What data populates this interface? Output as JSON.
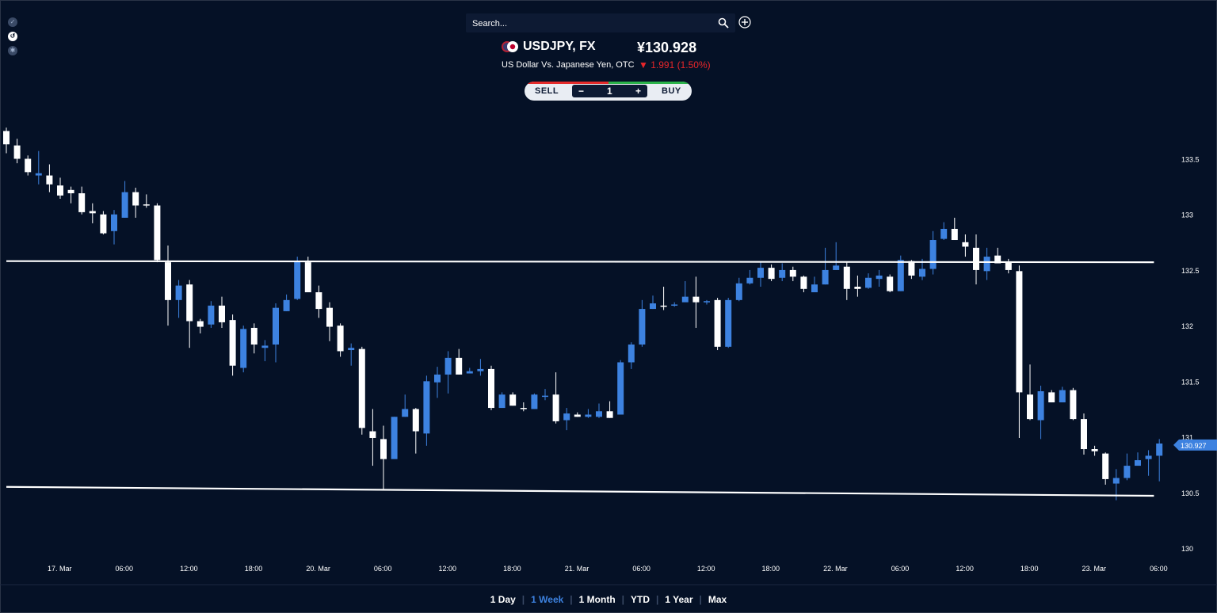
{
  "header": {
    "search_placeholder": "Search...",
    "symbol": "USDJPY, FX",
    "price": "¥130.928",
    "description": "US Dollar Vs. Japanese Yen, OTC",
    "change_arrow": "▼",
    "change": "1.991 (1.50%)"
  },
  "trade": {
    "sell_label": "SELL",
    "buy_label": "BUY",
    "minus": "−",
    "plus": "+",
    "quantity": "1"
  },
  "periods": [
    {
      "label": "1 Day"
    },
    {
      "label": "1 Week",
      "active": true
    },
    {
      "label": "1 Month"
    },
    {
      "label": "YTD"
    },
    {
      "label": "1 Year"
    },
    {
      "label": "Max"
    }
  ],
  "colors": {
    "background": "#051126",
    "up": "#3d82e0",
    "down": "#ffffff",
    "change_down": "#e8262a"
  },
  "chart_data": {
    "type": "candlestick",
    "ylim": [
      130,
      133.7
    ],
    "y_ticks": [
      "133.5",
      "133",
      "132.5",
      "132",
      "131.5",
      "131",
      "130.5",
      "130"
    ],
    "x_ticks": [
      {
        "label": "17. Mar",
        "i": 2
      },
      {
        "label": "06:00",
        "i": 8
      },
      {
        "label": "12:00",
        "i": 14
      },
      {
        "label": "18:00",
        "i": 20
      },
      {
        "label": "20. Mar",
        "i": 26
      },
      {
        "label": "06:00",
        "i": 32
      },
      {
        "label": "12:00",
        "i": 38
      },
      {
        "label": "18:00",
        "i": 44
      },
      {
        "label": "21. Mar",
        "i": 50
      },
      {
        "label": "06:00",
        "i": 56
      },
      {
        "label": "12:00",
        "i": 62
      },
      {
        "label": "18:00",
        "i": 68
      },
      {
        "label": "22. Mar",
        "i": 74
      },
      {
        "label": "06:00",
        "i": 80
      },
      {
        "label": "12:00",
        "i": 86
      },
      {
        "label": "18:00",
        "i": 92
      },
      {
        "label": "23. Mar",
        "i": 98
      },
      {
        "label": "06:00",
        "i": 104
      }
    ],
    "last_price_label": "130.927",
    "last_price": 130.927,
    "trendlines": [
      {
        "from": [
          0,
          132.58
        ],
        "to": [
          106.5,
          132.57
        ]
      },
      {
        "from": [
          0,
          130.55
        ],
        "to": [
          106.5,
          130.47
        ]
      }
    ],
    "candles": [
      [
        133.75,
        133.63,
        133.78,
        133.55
      ],
      [
        133.62,
        133.5,
        133.68,
        133.46
      ],
      [
        133.5,
        133.38,
        133.53,
        133.35
      ],
      [
        133.35,
        133.37,
        133.57,
        133.27
      ],
      [
        133.35,
        133.27,
        133.45,
        133.2
      ],
      [
        133.26,
        133.17,
        133.33,
        133.14
      ],
      [
        133.22,
        133.19,
        133.25,
        133.1
      ],
      [
        133.19,
        133.02,
        133.25,
        133.0
      ],
      [
        133.03,
        133.01,
        133.1,
        132.92
      ],
      [
        133.0,
        132.83,
        133.03,
        132.82
      ],
      [
        132.85,
        133.0,
        133.04,
        132.73
      ],
      [
        132.97,
        133.2,
        133.3,
        132.97
      ],
      [
        133.2,
        133.08,
        133.24,
        132.97
      ],
      [
        133.09,
        133.08,
        133.18,
        133.06
      ],
      [
        133.08,
        132.59,
        133.1,
        132.57
      ],
      [
        132.57,
        132.23,
        132.72,
        132.0
      ],
      [
        132.23,
        132.36,
        132.41,
        132.07
      ],
      [
        132.37,
        132.04,
        132.41,
        131.8
      ],
      [
        132.04,
        131.99,
        132.06,
        131.93
      ],
      [
        132.01,
        132.18,
        132.22,
        131.98
      ],
      [
        132.18,
        132.03,
        132.26,
        131.98
      ],
      [
        132.05,
        131.64,
        132.1,
        131.55
      ],
      [
        131.62,
        131.97,
        132.0,
        131.58
      ],
      [
        131.98,
        131.83,
        132.02,
        131.75
      ],
      [
        131.8,
        131.82,
        131.87,
        131.68
      ],
      [
        131.83,
        132.16,
        132.2,
        131.67
      ],
      [
        132.13,
        132.23,
        132.28,
        132.13
      ],
      [
        132.24,
        132.58,
        132.62,
        132.23
      ],
      [
        132.57,
        132.3,
        132.62,
        132.3
      ],
      [
        132.3,
        132.15,
        132.36,
        132.07
      ],
      [
        132.16,
        131.99,
        132.21,
        131.86
      ],
      [
        132.0,
        131.77,
        132.02,
        131.72
      ],
      [
        131.78,
        131.8,
        131.84,
        131.64
      ],
      [
        131.79,
        131.08,
        131.81,
        131.02
      ],
      [
        131.05,
        130.99,
        131.25,
        130.74
      ],
      [
        130.98,
        130.8,
        131.1,
        130.52
      ],
      [
        130.8,
        131.18,
        131.18,
        130.83
      ],
      [
        131.18,
        131.25,
        131.38,
        131.18
      ],
      [
        131.25,
        131.05,
        131.26,
        130.85
      ],
      [
        131.03,
        131.5,
        131.55,
        130.92
      ],
      [
        131.49,
        131.56,
        131.63,
        131.35
      ],
      [
        131.56,
        131.71,
        131.77,
        131.39
      ],
      [
        131.71,
        131.56,
        131.79,
        131.56
      ],
      [
        131.57,
        131.59,
        131.62,
        131.57
      ],
      [
        131.59,
        131.61,
        131.7,
        131.55
      ],
      [
        131.61,
        131.26,
        131.64,
        131.24
      ],
      [
        131.26,
        131.38,
        131.4,
        131.26
      ],
      [
        131.38,
        131.28,
        131.4,
        131.28
      ],
      [
        131.26,
        131.25,
        131.31,
        131.23
      ],
      [
        131.25,
        131.38,
        131.39,
        131.25
      ],
      [
        131.37,
        131.37,
        131.43,
        131.33
      ],
      [
        131.38,
        131.14,
        131.58,
        131.12
      ],
      [
        131.15,
        131.21,
        131.26,
        131.06
      ],
      [
        131.2,
        131.18,
        131.22,
        131.18
      ],
      [
        131.18,
        131.2,
        131.25,
        131.17
      ],
      [
        131.18,
        131.23,
        131.3,
        131.17
      ],
      [
        131.23,
        131.17,
        131.32,
        131.17
      ],
      [
        131.2,
        131.67,
        131.69,
        131.2
      ],
      [
        131.67,
        131.83,
        131.85,
        131.61
      ],
      [
        131.83,
        132.15,
        132.23,
        131.81
      ],
      [
        132.15,
        132.2,
        132.27,
        132.15
      ],
      [
        132.18,
        132.17,
        132.35,
        132.14
      ],
      [
        132.18,
        132.19,
        132.21,
        132.17
      ],
      [
        132.21,
        132.26,
        132.4,
        132.24
      ],
      [
        132.26,
        132.21,
        132.44,
        131.98
      ],
      [
        132.21,
        132.22,
        132.23,
        132.19
      ],
      [
        132.23,
        131.81,
        132.25,
        131.78
      ],
      [
        131.81,
        132.23,
        132.25,
        131.8
      ],
      [
        132.23,
        132.38,
        132.43,
        132.22
      ],
      [
        132.38,
        132.43,
        132.5,
        132.37
      ],
      [
        132.43,
        132.52,
        132.57,
        132.35
      ],
      [
        132.52,
        132.42,
        132.55,
        132.4
      ],
      [
        132.43,
        132.5,
        132.56,
        132.4
      ],
      [
        132.5,
        132.44,
        132.53,
        132.4
      ],
      [
        132.44,
        132.33,
        132.45,
        132.3
      ],
      [
        132.3,
        132.37,
        132.44,
        132.3
      ],
      [
        132.37,
        132.5,
        132.7,
        132.37
      ],
      [
        132.5,
        132.54,
        132.75,
        132.5
      ],
      [
        132.53,
        132.33,
        132.57,
        132.23
      ],
      [
        132.35,
        132.33,
        132.45,
        132.26
      ],
      [
        132.34,
        132.43,
        132.47,
        132.33
      ],
      [
        132.42,
        132.45,
        132.5,
        132.35
      ],
      [
        132.44,
        132.31,
        132.46,
        132.3
      ],
      [
        132.31,
        132.59,
        132.63,
        132.31
      ],
      [
        132.58,
        132.45,
        132.59,
        132.42
      ],
      [
        132.44,
        132.51,
        132.6,
        132.41
      ],
      [
        132.51,
        132.77,
        132.85,
        132.46
      ],
      [
        132.78,
        132.87,
        132.93,
        132.77
      ],
      [
        132.87,
        132.77,
        132.97,
        132.77
      ],
      [
        132.75,
        132.71,
        132.82,
        132.62
      ],
      [
        132.7,
        132.5,
        132.82,
        132.37
      ],
      [
        132.49,
        132.62,
        132.7,
        132.41
      ],
      [
        132.63,
        132.56,
        132.7,
        132.56
      ],
      [
        132.57,
        132.5,
        132.6,
        132.47
      ],
      [
        132.49,
        131.4,
        132.54,
        130.99
      ],
      [
        131.38,
        131.16,
        131.65,
        131.15
      ],
      [
        131.15,
        131.41,
        131.46,
        130.98
      ],
      [
        131.4,
        131.31,
        131.42,
        131.31
      ],
      [
        131.31,
        131.42,
        131.45,
        131.31
      ],
      [
        131.42,
        131.16,
        131.44,
        131.15
      ],
      [
        131.16,
        130.89,
        131.21,
        130.84
      ],
      [
        130.89,
        130.87,
        130.92,
        130.83
      ],
      [
        130.85,
        130.62,
        130.86,
        130.57
      ],
      [
        130.58,
        130.63,
        130.71,
        130.43
      ],
      [
        130.63,
        130.74,
        130.85,
        130.61
      ],
      [
        130.74,
        130.79,
        130.86,
        130.75
      ],
      [
        130.8,
        130.83,
        130.88,
        130.65
      ],
      [
        130.83,
        130.94,
        130.98,
        130.6
      ]
    ]
  }
}
